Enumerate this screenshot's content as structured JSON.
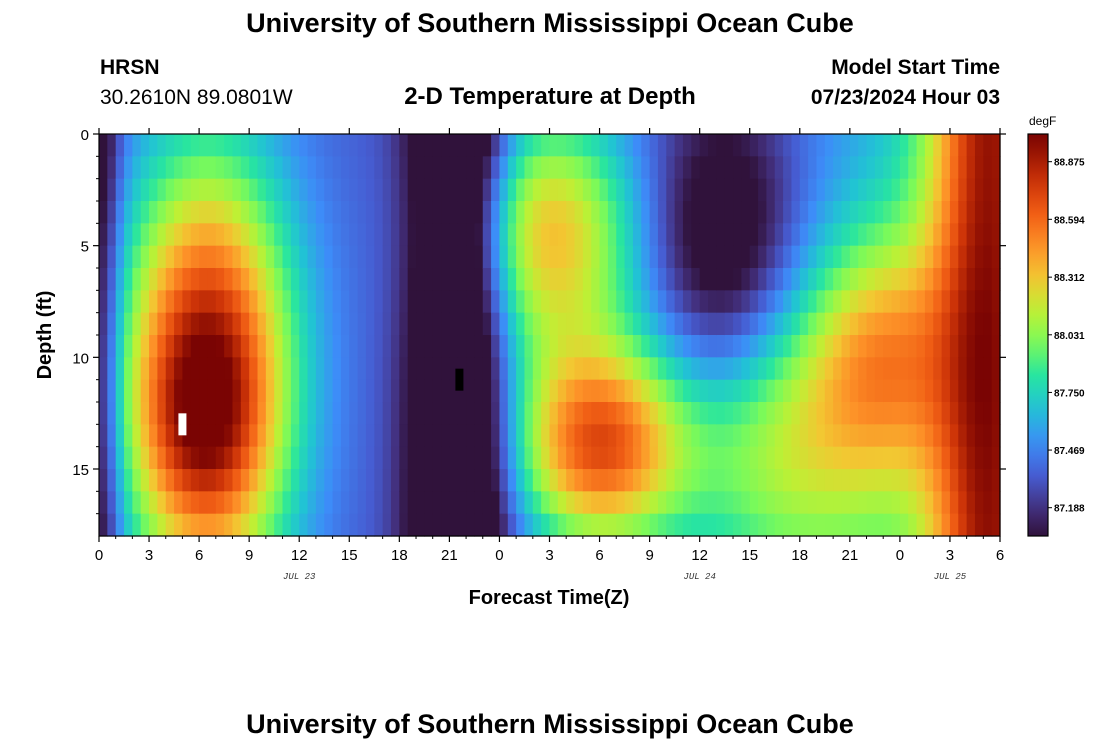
{
  "page": {
    "title": "University of Southern Mississippi Ocean Cube",
    "title_repeat": "University of Southern Mississippi Ocean Cube",
    "station": "HRSN",
    "coords": "30.2610N  89.0801W",
    "plot_title": "2-D Temperature at Depth",
    "model_label": "Model Start Time",
    "model_time": "07/23/2024 Hour 03"
  },
  "chart_data": {
    "type": "heatmap",
    "title": "2-D Temperature at Depth",
    "xlabel": "Forecast Time(Z)",
    "ylabel": "Depth (ft)",
    "x_tick_labels": [
      "0",
      "3",
      "6",
      "9",
      "12",
      "15",
      "18",
      "21",
      "0",
      "3",
      "6",
      "9",
      "12",
      "15",
      "18",
      "21",
      "0",
      "3",
      "6"
    ],
    "x_hours_since_start": [
      0,
      3,
      6,
      9,
      12,
      15,
      18,
      21,
      24,
      27,
      30,
      33,
      36,
      39,
      42,
      45,
      48,
      51,
      54
    ],
    "date_labels": [
      {
        "text": "JUL 23",
        "hour": 12
      },
      {
        "text": "JUL 24",
        "hour": 36
      },
      {
        "text": "JUL 25",
        "hour": 51
      }
    ],
    "y_ticks": [
      0,
      5,
      10,
      15
    ],
    "ylim": [
      0,
      18
    ],
    "xlim": [
      0,
      54
    ],
    "colorbar": {
      "unit": "degF",
      "ticks": [
        "88.875",
        "88.594",
        "88.312",
        "88.031",
        "87.750",
        "87.469",
        "87.188"
      ],
      "tick_values": [
        88.875,
        88.594,
        88.312,
        88.031,
        87.75,
        87.469,
        87.188
      ],
      "min": 87.05,
      "max": 89.01
    },
    "markers": [
      {
        "color": "#ffffff",
        "hour": 5.0,
        "depth": 13.0
      },
      {
        "color": "#000000",
        "hour": 21.6,
        "depth": 11.0
      }
    ]
  }
}
